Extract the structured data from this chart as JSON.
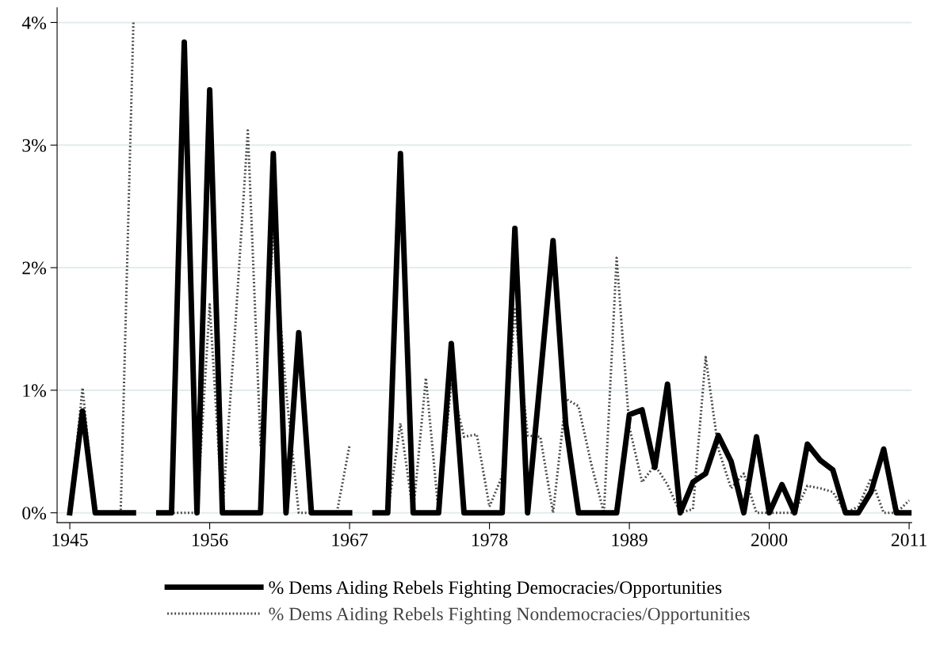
{
  "chart_data": {
    "type": "line",
    "x": [
      1945,
      1946,
      1947,
      1948,
      1949,
      1950,
      1951,
      1952,
      1953,
      1954,
      1955,
      1956,
      1957,
      1958,
      1959,
      1960,
      1961,
      1962,
      1963,
      1964,
      1965,
      1966,
      1967,
      1968,
      1969,
      1970,
      1971,
      1972,
      1973,
      1974,
      1975,
      1976,
      1977,
      1978,
      1979,
      1980,
      1981,
      1982,
      1983,
      1984,
      1985,
      1986,
      1987,
      1988,
      1989,
      1990,
      1991,
      1992,
      1993,
      1994,
      1995,
      1996,
      1997,
      1998,
      1999,
      2000,
      2001,
      2002,
      2003,
      2004,
      2005,
      2006,
      2007,
      2008,
      2009,
      2010,
      2011
    ],
    "series": [
      {
        "name": "% Dems Aiding Rebels Fighting Democracies/Opportunities",
        "color": "#000000",
        "line_style": "solid",
        "values": [
          0,
          0.83,
          0,
          0,
          0,
          0,
          null,
          0,
          0,
          3.84,
          0,
          3.45,
          0,
          0,
          0,
          0,
          2.93,
          0,
          1.47,
          0,
          0,
          0,
          0,
          null,
          0,
          0,
          2.93,
          0,
          0,
          0,
          1.38,
          0,
          0,
          0,
          0,
          2.32,
          0,
          1.1,
          2.22,
          0.72,
          0,
          0,
          0,
          0,
          0.8,
          0.84,
          0.37,
          1.05,
          0,
          0.25,
          0.32,
          0.63,
          0.42,
          0,
          0.62,
          0,
          0.23,
          0,
          0.56,
          0.43,
          0.35,
          0,
          0,
          0.17,
          0.52,
          0,
          0
        ]
      },
      {
        "name": "% Dems Aiding Rebels Fighting Nondemocracies/Opportunities",
        "color": "#444444",
        "line_style": "dotted",
        "values": [
          0,
          1.02,
          0,
          0,
          0,
          4.0,
          null,
          0,
          0,
          0,
          0,
          1.7,
          0,
          1.5,
          3.12,
          0.55,
          2.3,
          1.0,
          0,
          0,
          0,
          0,
          0.55,
          null,
          0,
          0,
          0.73,
          0,
          1.1,
          0,
          1.06,
          0.62,
          0.64,
          0.05,
          0.3,
          1.66,
          0.63,
          0.62,
          0,
          0.93,
          0.87,
          0.4,
          0,
          2.08,
          0.7,
          0.25,
          0.39,
          0.23,
          0,
          0.03,
          1.27,
          0.52,
          0.2,
          0.32,
          0,
          0,
          0,
          0,
          0.22,
          0.2,
          0.17,
          0,
          0.05,
          0.28,
          0,
          0,
          0.1
        ]
      }
    ],
    "xlim": [
      1944,
      2011.2
    ],
    "xticks": [
      1945,
      1956,
      1967,
      1978,
      1989,
      2000,
      2011
    ],
    "ylim": [
      -0.08,
      4.12
    ],
    "yticks": [
      {
        "value": 0,
        "label": "0%"
      },
      {
        "value": 1,
        "label": "1%"
      },
      {
        "value": 2,
        "label": "2%"
      },
      {
        "value": 3,
        "label": "3%"
      },
      {
        "value": 4,
        "label": "4%"
      }
    ],
    "grid": "y",
    "legend": "bottom"
  }
}
